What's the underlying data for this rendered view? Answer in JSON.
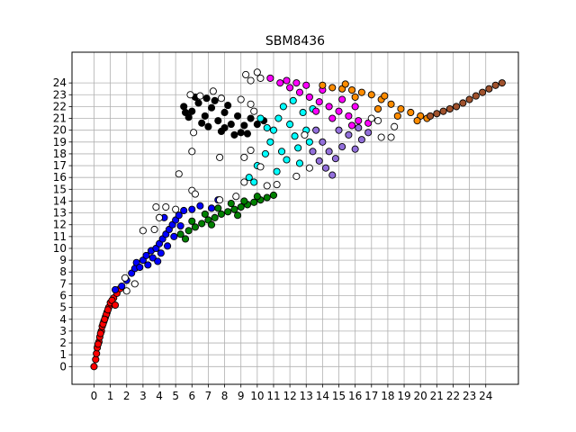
{
  "chart_data": {
    "type": "scatter",
    "title": "SBM8436",
    "xlabel": "",
    "ylabel": "",
    "xlim": [
      -1.35,
      26.0
    ],
    "ylim": [
      -1.5,
      26.6
    ],
    "xticks": [
      0,
      1,
      2,
      3,
      4,
      5,
      6,
      7,
      8,
      9,
      10,
      11,
      12,
      13,
      14,
      15,
      16,
      17,
      18,
      19,
      20,
      21,
      22,
      23,
      24
    ],
    "yticks": [
      0,
      1,
      2,
      3,
      4,
      5,
      6,
      7,
      8,
      9,
      10,
      11,
      12,
      13,
      14,
      15,
      16,
      17,
      18,
      19,
      20,
      21,
      22,
      23,
      24
    ],
    "grid": true,
    "legend": "none",
    "marker_edge_color": "#000000",
    "series": [
      {
        "color": "#ff0000",
        "points": [
          [
            0.0,
            0.0
          ],
          [
            0.1,
            0.6
          ],
          [
            0.15,
            1.1
          ],
          [
            0.2,
            1.6
          ],
          [
            0.3,
            2.1
          ],
          [
            0.35,
            2.5
          ],
          [
            0.45,
            3.0
          ],
          [
            0.5,
            3.4
          ],
          [
            0.6,
            3.8
          ],
          [
            0.7,
            4.2
          ],
          [
            0.8,
            4.6
          ],
          [
            0.9,
            5.0
          ],
          [
            1.0,
            5.4
          ],
          [
            1.2,
            5.8
          ],
          [
            1.4,
            6.2
          ],
          [
            1.6,
            6.6
          ],
          [
            0.25,
            1.9
          ],
          [
            0.4,
            2.8
          ],
          [
            0.55,
            3.6
          ],
          [
            0.75,
            4.4
          ],
          [
            1.1,
            5.6
          ],
          [
            1.3,
            5.2
          ],
          [
            0.65,
            4.0
          ],
          [
            0.85,
            4.8
          ]
        ]
      },
      {
        "color": "#0000ff",
        "points": [
          [
            1.3,
            6.5
          ],
          [
            1.7,
            6.8
          ],
          [
            2.0,
            7.3
          ],
          [
            2.3,
            7.9
          ],
          [
            2.5,
            8.3
          ],
          [
            2.6,
            8.8
          ],
          [
            3.0,
            9.0
          ],
          [
            3.2,
            9.4
          ],
          [
            3.5,
            9.8
          ],
          [
            3.8,
            10.0
          ],
          [
            4.0,
            10.4
          ],
          [
            4.2,
            10.8
          ],
          [
            4.4,
            11.2
          ],
          [
            4.6,
            11.6
          ],
          [
            4.8,
            12.0
          ],
          [
            5.0,
            12.4
          ],
          [
            5.2,
            12.8
          ],
          [
            5.5,
            13.2
          ],
          [
            3.3,
            8.6
          ],
          [
            3.6,
            9.2
          ],
          [
            4.1,
            9.6
          ],
          [
            4.5,
            10.2
          ],
          [
            4.9,
            11.0
          ],
          [
            5.3,
            11.9
          ],
          [
            6.5,
            13.6
          ],
          [
            7.2,
            13.4
          ],
          [
            7.6,
            14.1
          ],
          [
            2.8,
            8.4
          ],
          [
            3.9,
            8.9
          ],
          [
            4.3,
            12.6
          ],
          [
            6.0,
            13.3
          ]
        ]
      },
      {
        "color": "#008000",
        "points": [
          [
            5.3,
            11.2
          ],
          [
            5.8,
            11.5
          ],
          [
            6.2,
            11.8
          ],
          [
            6.6,
            12.1
          ],
          [
            7.0,
            12.4
          ],
          [
            7.4,
            12.6
          ],
          [
            7.8,
            12.9
          ],
          [
            8.2,
            13.1
          ],
          [
            8.6,
            13.3
          ],
          [
            9.0,
            13.5
          ],
          [
            9.4,
            13.7
          ],
          [
            9.8,
            13.9
          ],
          [
            10.2,
            14.1
          ],
          [
            10.6,
            14.3
          ],
          [
            11.0,
            14.5
          ],
          [
            6.0,
            12.3
          ],
          [
            6.8,
            12.9
          ],
          [
            7.6,
            13.4
          ],
          [
            8.4,
            13.8
          ],
          [
            9.2,
            14.0
          ],
          [
            10.0,
            14.4
          ],
          [
            5.6,
            10.8
          ],
          [
            7.2,
            12.0
          ],
          [
            8.8,
            12.8
          ]
        ]
      },
      {
        "color": "#000000",
        "points": [
          [
            5.5,
            22.0
          ],
          [
            6.0,
            21.6
          ],
          [
            6.4,
            22.3
          ],
          [
            6.8,
            21.2
          ],
          [
            7.2,
            21.9
          ],
          [
            7.6,
            20.8
          ],
          [
            8.0,
            21.5
          ],
          [
            8.4,
            20.5
          ],
          [
            8.8,
            21.2
          ],
          [
            9.2,
            20.4
          ],
          [
            9.6,
            21.0
          ],
          [
            10.0,
            20.5
          ],
          [
            10.4,
            20.8
          ],
          [
            5.8,
            21.1
          ],
          [
            6.6,
            20.6
          ],
          [
            7.4,
            22.5
          ],
          [
            8.2,
            22.1
          ],
          [
            9.0,
            19.8
          ],
          [
            6.2,
            22.8
          ],
          [
            7.0,
            20.3
          ],
          [
            7.8,
            19.9
          ],
          [
            8.6,
            19.6
          ],
          [
            9.4,
            19.7
          ],
          [
            5.6,
            21.5
          ],
          [
            6.9,
            22.7
          ],
          [
            8.0,
            20.2
          ]
        ]
      },
      {
        "color": "#00ffff",
        "points": [
          [
            9.5,
            16.0
          ],
          [
            10.0,
            17.0
          ],
          [
            10.5,
            18.0
          ],
          [
            10.8,
            19.0
          ],
          [
            11.0,
            20.0
          ],
          [
            11.3,
            21.0
          ],
          [
            11.6,
            22.0
          ],
          [
            12.0,
            20.5
          ],
          [
            12.3,
            19.5
          ],
          [
            12.5,
            18.5
          ],
          [
            12.8,
            21.5
          ],
          [
            13.0,
            20.0
          ],
          [
            11.8,
            17.5
          ],
          [
            11.2,
            16.5
          ],
          [
            12.2,
            22.5
          ],
          [
            10.2,
            21.0
          ],
          [
            10.6,
            20.2
          ],
          [
            13.2,
            19.0
          ],
          [
            11.5,
            18.2
          ],
          [
            12.6,
            17.2
          ],
          [
            9.8,
            15.6
          ],
          [
            13.4,
            21.8
          ]
        ]
      },
      {
        "color": "#ff00ff",
        "points": [
          [
            10.8,
            24.4
          ],
          [
            11.4,
            24.0
          ],
          [
            12.0,
            23.6
          ],
          [
            12.6,
            23.2
          ],
          [
            13.2,
            22.8
          ],
          [
            13.8,
            22.4
          ],
          [
            14.4,
            22.0
          ],
          [
            15.0,
            21.6
          ],
          [
            15.6,
            21.2
          ],
          [
            16.2,
            20.8
          ],
          [
            16.8,
            20.6
          ],
          [
            11.8,
            24.2
          ],
          [
            13.0,
            23.8
          ],
          [
            14.0,
            23.4
          ],
          [
            15.2,
            22.6
          ],
          [
            16.0,
            22.0
          ],
          [
            14.6,
            21.0
          ],
          [
            13.6,
            21.6
          ],
          [
            12.4,
            24.0
          ],
          [
            15.8,
            20.4
          ]
        ]
      },
      {
        "color": "#9370db",
        "points": [
          [
            13.6,
            20.0
          ],
          [
            14.0,
            19.0
          ],
          [
            14.4,
            18.2
          ],
          [
            14.8,
            17.6
          ],
          [
            15.2,
            18.6
          ],
          [
            15.6,
            19.6
          ],
          [
            16.0,
            18.4
          ],
          [
            16.4,
            19.2
          ],
          [
            16.8,
            19.8
          ],
          [
            14.2,
            16.8
          ],
          [
            14.6,
            16.2
          ],
          [
            13.8,
            17.4
          ],
          [
            15.0,
            20.0
          ],
          [
            13.4,
            18.2
          ],
          [
            16.2,
            20.2
          ]
        ]
      },
      {
        "color": "#ff8c00",
        "points": [
          [
            14.0,
            23.8
          ],
          [
            14.6,
            23.6
          ],
          [
            15.2,
            23.5
          ],
          [
            15.8,
            23.4
          ],
          [
            16.4,
            23.2
          ],
          [
            17.0,
            23.0
          ],
          [
            17.6,
            22.6
          ],
          [
            18.2,
            22.2
          ],
          [
            18.8,
            21.8
          ],
          [
            19.4,
            21.5
          ],
          [
            20.0,
            21.2
          ],
          [
            20.4,
            21.0
          ],
          [
            16.0,
            22.8
          ],
          [
            17.4,
            21.8
          ],
          [
            18.6,
            21.2
          ],
          [
            19.8,
            20.8
          ],
          [
            15.4,
            23.9
          ],
          [
            17.8,
            22.9
          ]
        ]
      },
      {
        "color": "#a0522d",
        "points": [
          [
            20.6,
            21.2
          ],
          [
            21.0,
            21.4
          ],
          [
            21.4,
            21.6
          ],
          [
            21.8,
            21.8
          ],
          [
            22.2,
            22.0
          ],
          [
            22.6,
            22.3
          ],
          [
            23.0,
            22.6
          ],
          [
            23.4,
            22.9
          ],
          [
            23.8,
            23.2
          ],
          [
            24.2,
            23.5
          ],
          [
            24.6,
            23.8
          ],
          [
            25.0,
            24.0
          ]
        ]
      },
      {
        "color": "#ffffff",
        "points": [
          [
            5.9,
            23.0
          ],
          [
            6.5,
            22.9
          ],
          [
            7.3,
            23.3
          ],
          [
            9.6,
            24.2
          ],
          [
            10.0,
            24.9
          ],
          [
            9.3,
            24.7
          ],
          [
            9.0,
            22.6
          ],
          [
            7.8,
            22.7
          ],
          [
            9.6,
            22.2
          ],
          [
            9.8,
            21.6
          ],
          [
            6.1,
            19.8
          ],
          [
            6.0,
            18.2
          ],
          [
            7.7,
            17.7
          ],
          [
            9.2,
            17.7
          ],
          [
            9.6,
            18.3
          ],
          [
            5.2,
            16.3
          ],
          [
            6.0,
            14.9
          ],
          [
            6.2,
            14.6
          ],
          [
            3.8,
            13.5
          ],
          [
            4.4,
            13.5
          ],
          [
            5.0,
            13.3
          ],
          [
            4.0,
            12.6
          ],
          [
            3.0,
            11.5
          ],
          [
            3.7,
            11.6
          ],
          [
            1.9,
            7.5
          ],
          [
            2.5,
            7.0
          ],
          [
            2.0,
            6.4
          ],
          [
            7.7,
            14.1
          ],
          [
            8.7,
            14.4
          ],
          [
            9.2,
            15.6
          ],
          [
            10.6,
            15.3
          ],
          [
            11.2,
            15.4
          ],
          [
            12.4,
            16.1
          ],
          [
            13.2,
            16.8
          ],
          [
            10.2,
            16.9
          ],
          [
            17.6,
            19.4
          ],
          [
            18.2,
            19.4
          ],
          [
            18.4,
            20.3
          ],
          [
            17.4,
            20.8
          ],
          [
            12.9,
            19.6
          ],
          [
            10.2,
            24.4
          ],
          [
            17.0,
            21.0
          ]
        ]
      }
    ]
  }
}
